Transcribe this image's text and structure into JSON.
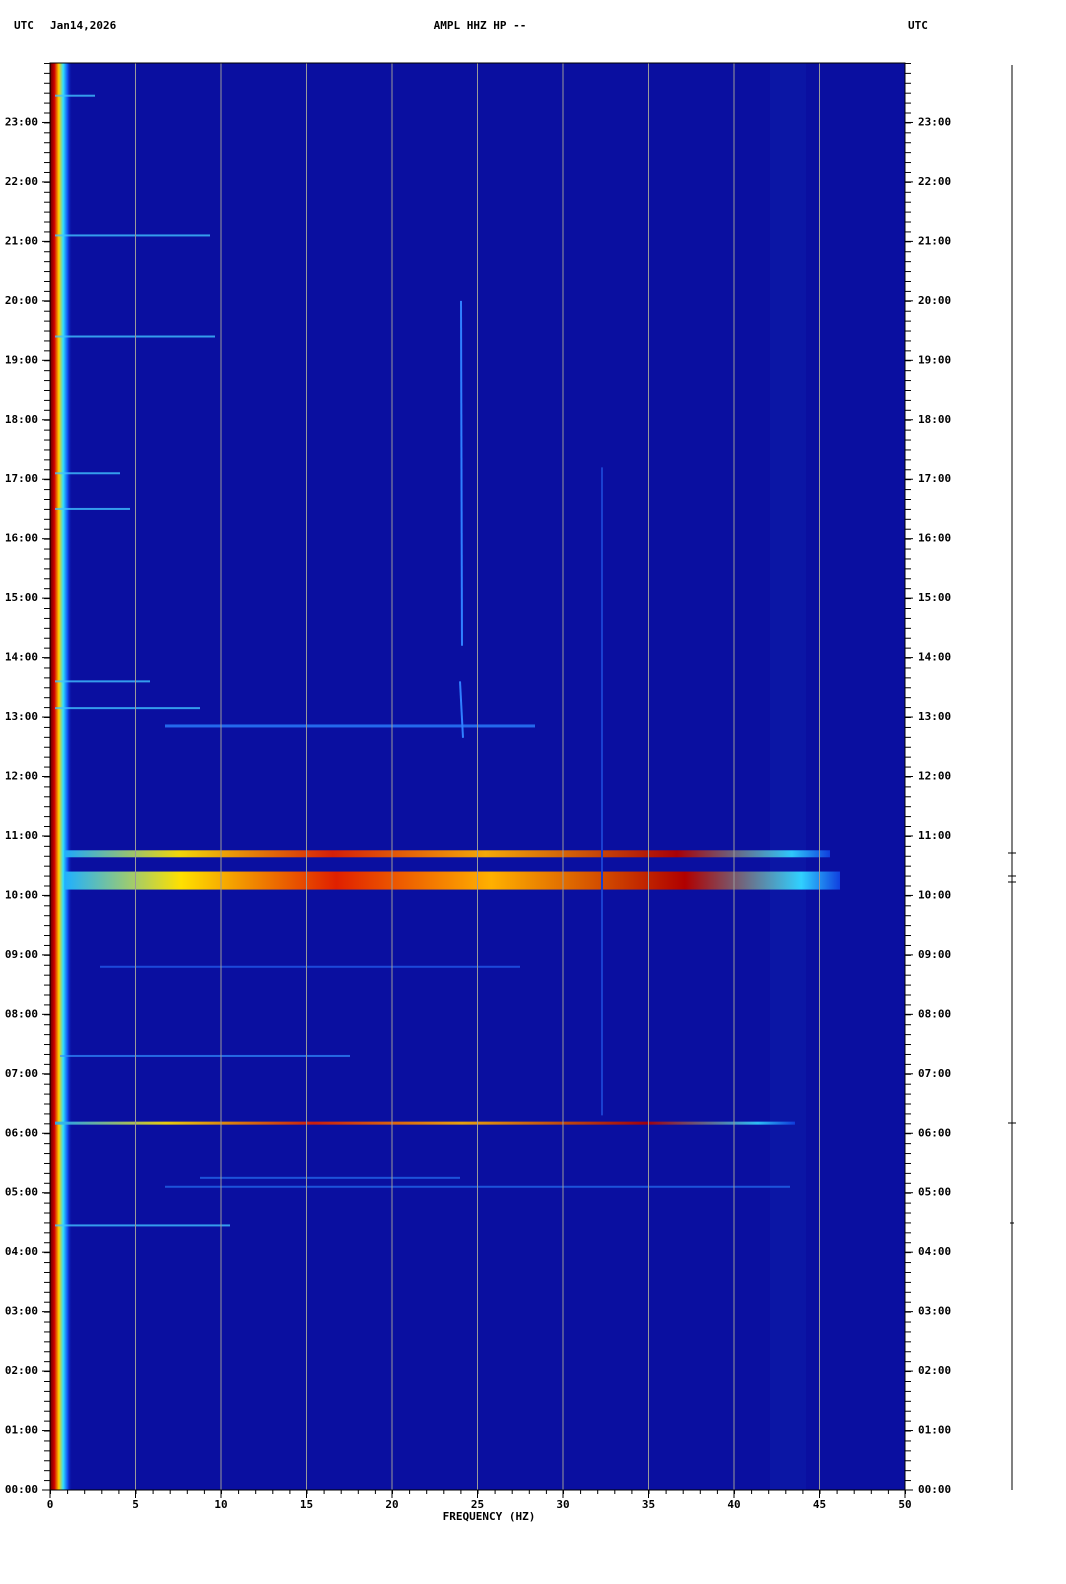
{
  "chart_data": {
    "type": "spectrogram",
    "title": "AMPL HHZ HP --",
    "date": "Jan14,2026",
    "timezone": "UTC",
    "timezone_right": "UTC",
    "xlabel": "FREQUENCY (HZ)",
    "xlim": [
      0,
      50
    ],
    "xticks": [
      0,
      5,
      10,
      15,
      20,
      25,
      30,
      35,
      40,
      45,
      50
    ],
    "ylim": [
      0,
      24
    ],
    "yticks": [
      {
        "value": 0,
        "label": "00:00"
      },
      {
        "value": 1,
        "label": "01:00"
      },
      {
        "value": 2,
        "label": "02:00"
      },
      {
        "value": 3,
        "label": "03:00"
      },
      {
        "value": 4,
        "label": "04:00"
      },
      {
        "value": 5,
        "label": "05:00"
      },
      {
        "value": 6,
        "label": "06:00"
      },
      {
        "value": 7,
        "label": "07:00"
      },
      {
        "value": 8,
        "label": "08:00"
      },
      {
        "value": 9,
        "label": "09:00"
      },
      {
        "value": 10,
        "label": "10:00"
      },
      {
        "value": 11,
        "label": "11:00"
      },
      {
        "value": 12,
        "label": "12:00"
      },
      {
        "value": 13,
        "label": "13:00"
      },
      {
        "value": 14,
        "label": "14:00"
      },
      {
        "value": 15,
        "label": "15:00"
      },
      {
        "value": 16,
        "label": "16:00"
      },
      {
        "value": 17,
        "label": "17:00"
      },
      {
        "value": 18,
        "label": "18:00"
      },
      {
        "value": 19,
        "label": "19:00"
      },
      {
        "value": 20,
        "label": "20:00"
      },
      {
        "value": 21,
        "label": "21:00"
      },
      {
        "value": 22,
        "label": "22:00"
      },
      {
        "value": 23,
        "label": "23:00"
      }
    ],
    "grid": true,
    "grid_color": "#9a9a9a",
    "background_color": "#0a0fa0"
  }
}
